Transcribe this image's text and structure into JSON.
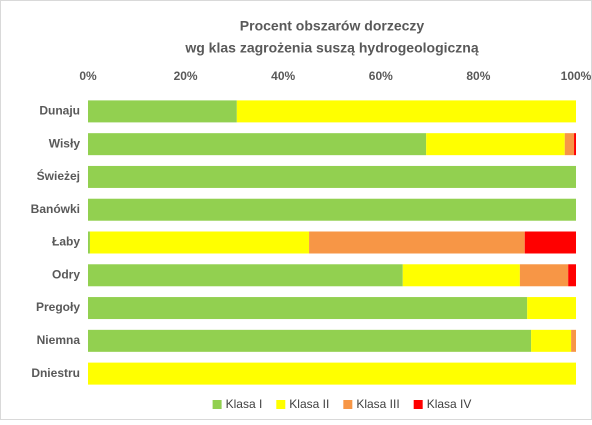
{
  "chart_data": {
    "type": "stacked_barh",
    "title": [
      "Procent obszarów dorzeczy",
      "wg klas zagrożenia suszą hydrogeologiczną"
    ],
    "categories": [
      "Dunaju",
      "Wisły",
      "Świeżej",
      "Banówki",
      "Łaby",
      "Odry",
      "Pregoły",
      "Niemna",
      "Dniestru"
    ],
    "series": [
      {
        "name": "Klasa I",
        "color": "#92d050",
        "values": [
          30.5,
          69.3,
          100,
          100,
          0.4,
          64.5,
          90,
          90.8,
          0
        ]
      },
      {
        "name": "Klasa II",
        "color": "#ffff00",
        "values": [
          69.5,
          28.4,
          0,
          0,
          44.9,
          24,
          10,
          8.2,
          100
        ]
      },
      {
        "name": "Klasa III",
        "color": "#f79646",
        "values": [
          0,
          1.9,
          0,
          0,
          44.2,
          9.9,
          0,
          1,
          0
        ]
      },
      {
        "name": "Klasa IV",
        "color": "#ff0000",
        "values": [
          0,
          0.4,
          0,
          0,
          10.5,
          1.6,
          0,
          0,
          0
        ]
      }
    ],
    "xlim": [
      0,
      100
    ],
    "xticks": [
      {
        "value": 0,
        "label": "0%"
      },
      {
        "value": 20,
        "label": "20%"
      },
      {
        "value": 40,
        "label": "40%"
      },
      {
        "value": 60,
        "label": "60%"
      },
      {
        "value": 80,
        "label": "80%"
      },
      {
        "value": 100,
        "label": "100%"
      }
    ],
    "legend": "bottom"
  }
}
